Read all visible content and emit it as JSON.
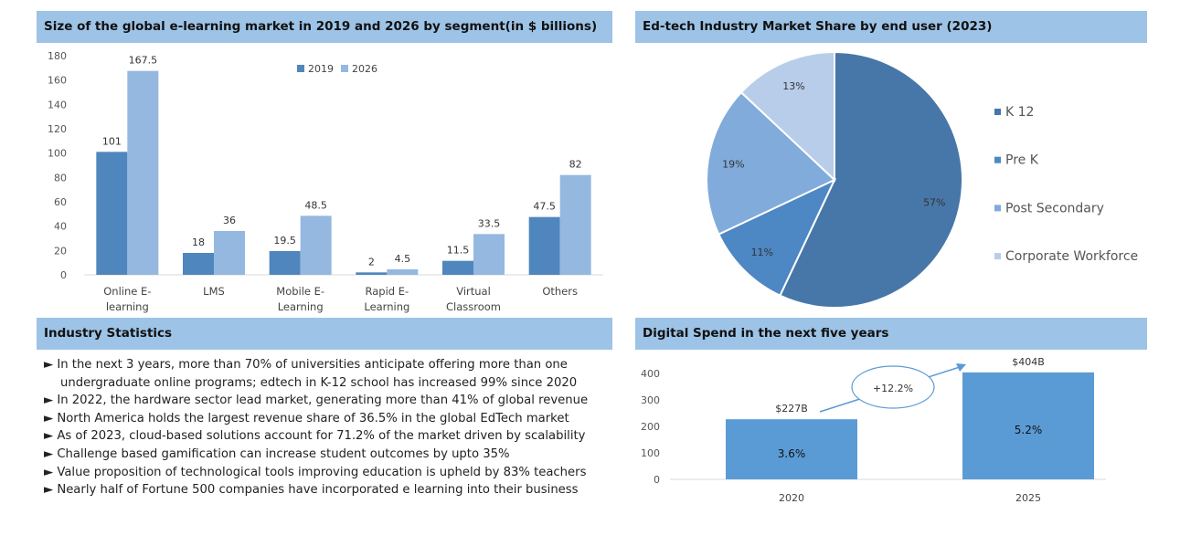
{
  "panels": {
    "market_title": "Size of the global e-learning market in 2019 and 2026 by segment(in $ billions)",
    "share_title": "Ed-tech Industry Market Share by end user (2023)",
    "stats_title": "Industry Statistics",
    "spend_title": "Digital Spend in the next five years"
  },
  "stats": [
    "► In the next 3 years, more than 70% of universities anticipate offering more than one",
    "    undergraduate online programs; edtech  in K-12 school has increased 99% since 2020",
    "► In 2022, the hardware sector  lead market, generating  more than 41% of global revenue",
    "►  North America holds the largest revenue share of 36.5% in the global EdTech market",
    "► As of 2023, cloud-based solutions account for 71.2% of the market driven by scalability",
    "► Challenge based gamification can increase student outcomes by upto 35%",
    "►  Value proposition of technological tools improving education is upheld by 83% teachers",
    "► Nearly half of Fortune 500 companies have incorporated e learning into their business"
  ],
  "chart_data": [
    {
      "type": "bar",
      "title": "Size of the global e-learning market in 2019 and 2026 by segment(in $ billions)",
      "categories": [
        [
          "Online E-",
          "learning"
        ],
        [
          "LMS"
        ],
        [
          "Mobile E-",
          "Learning"
        ],
        [
          "Rapid E-",
          "Learning"
        ],
        [
          "Virtual",
          "Classroom"
        ],
        [
          "Others"
        ]
      ],
      "series": [
        {
          "name": "2019",
          "color": "#4f86bd",
          "values": [
            101,
            18,
            19.5,
            2,
            11.5,
            47.5
          ],
          "labels": [
            "101",
            "18",
            "19.5",
            "2",
            "11.5",
            "47.5"
          ]
        },
        {
          "name": "2026",
          "color": "#95b8e0",
          "values": [
            167.5,
            36,
            48.5,
            4.5,
            33.5,
            82
          ],
          "labels": [
            "167.5",
            "36",
            "48.5",
            "4.5",
            "33.5",
            "82"
          ]
        }
      ],
      "ylim": [
        0,
        180
      ],
      "yticks": [
        "0",
        "20",
        "40",
        "60",
        "80",
        "100",
        "120",
        "140",
        "160",
        "180"
      ],
      "legend": "top-center",
      "grid": false
    },
    {
      "type": "pie",
      "title": "Ed-tech Industry Market Share by end user (2023)",
      "slices": [
        {
          "name": "K 12",
          "value": 57,
          "label": "57%",
          "color": "#4677a8"
        },
        {
          "name": "Pre K",
          "value": 11,
          "label": "11%",
          "color": "#4d87c4"
        },
        {
          "name": "Post Secondary",
          "value": 19,
          "label": "19%",
          "color": "#80abdb"
        },
        {
          "name": "Corporate Workforce",
          "value": 13,
          "label": "13%",
          "color": "#b8cde9"
        }
      ],
      "legend": "right"
    },
    {
      "type": "bar",
      "title": "Digital Spend in the next five years",
      "categories": [
        "2020",
        "2025"
      ],
      "values": [
        227,
        404
      ],
      "value_labels": [
        "$227B",
        "$404B"
      ],
      "inner_labels": [
        "3.6%",
        "5.2%"
      ],
      "annotation": "+12.2%",
      "color": "#5b9bd5",
      "ylim": [
        0,
        400
      ],
      "yticks": [
        "0",
        "100",
        "200",
        "300",
        "400"
      ],
      "grid": false
    }
  ]
}
